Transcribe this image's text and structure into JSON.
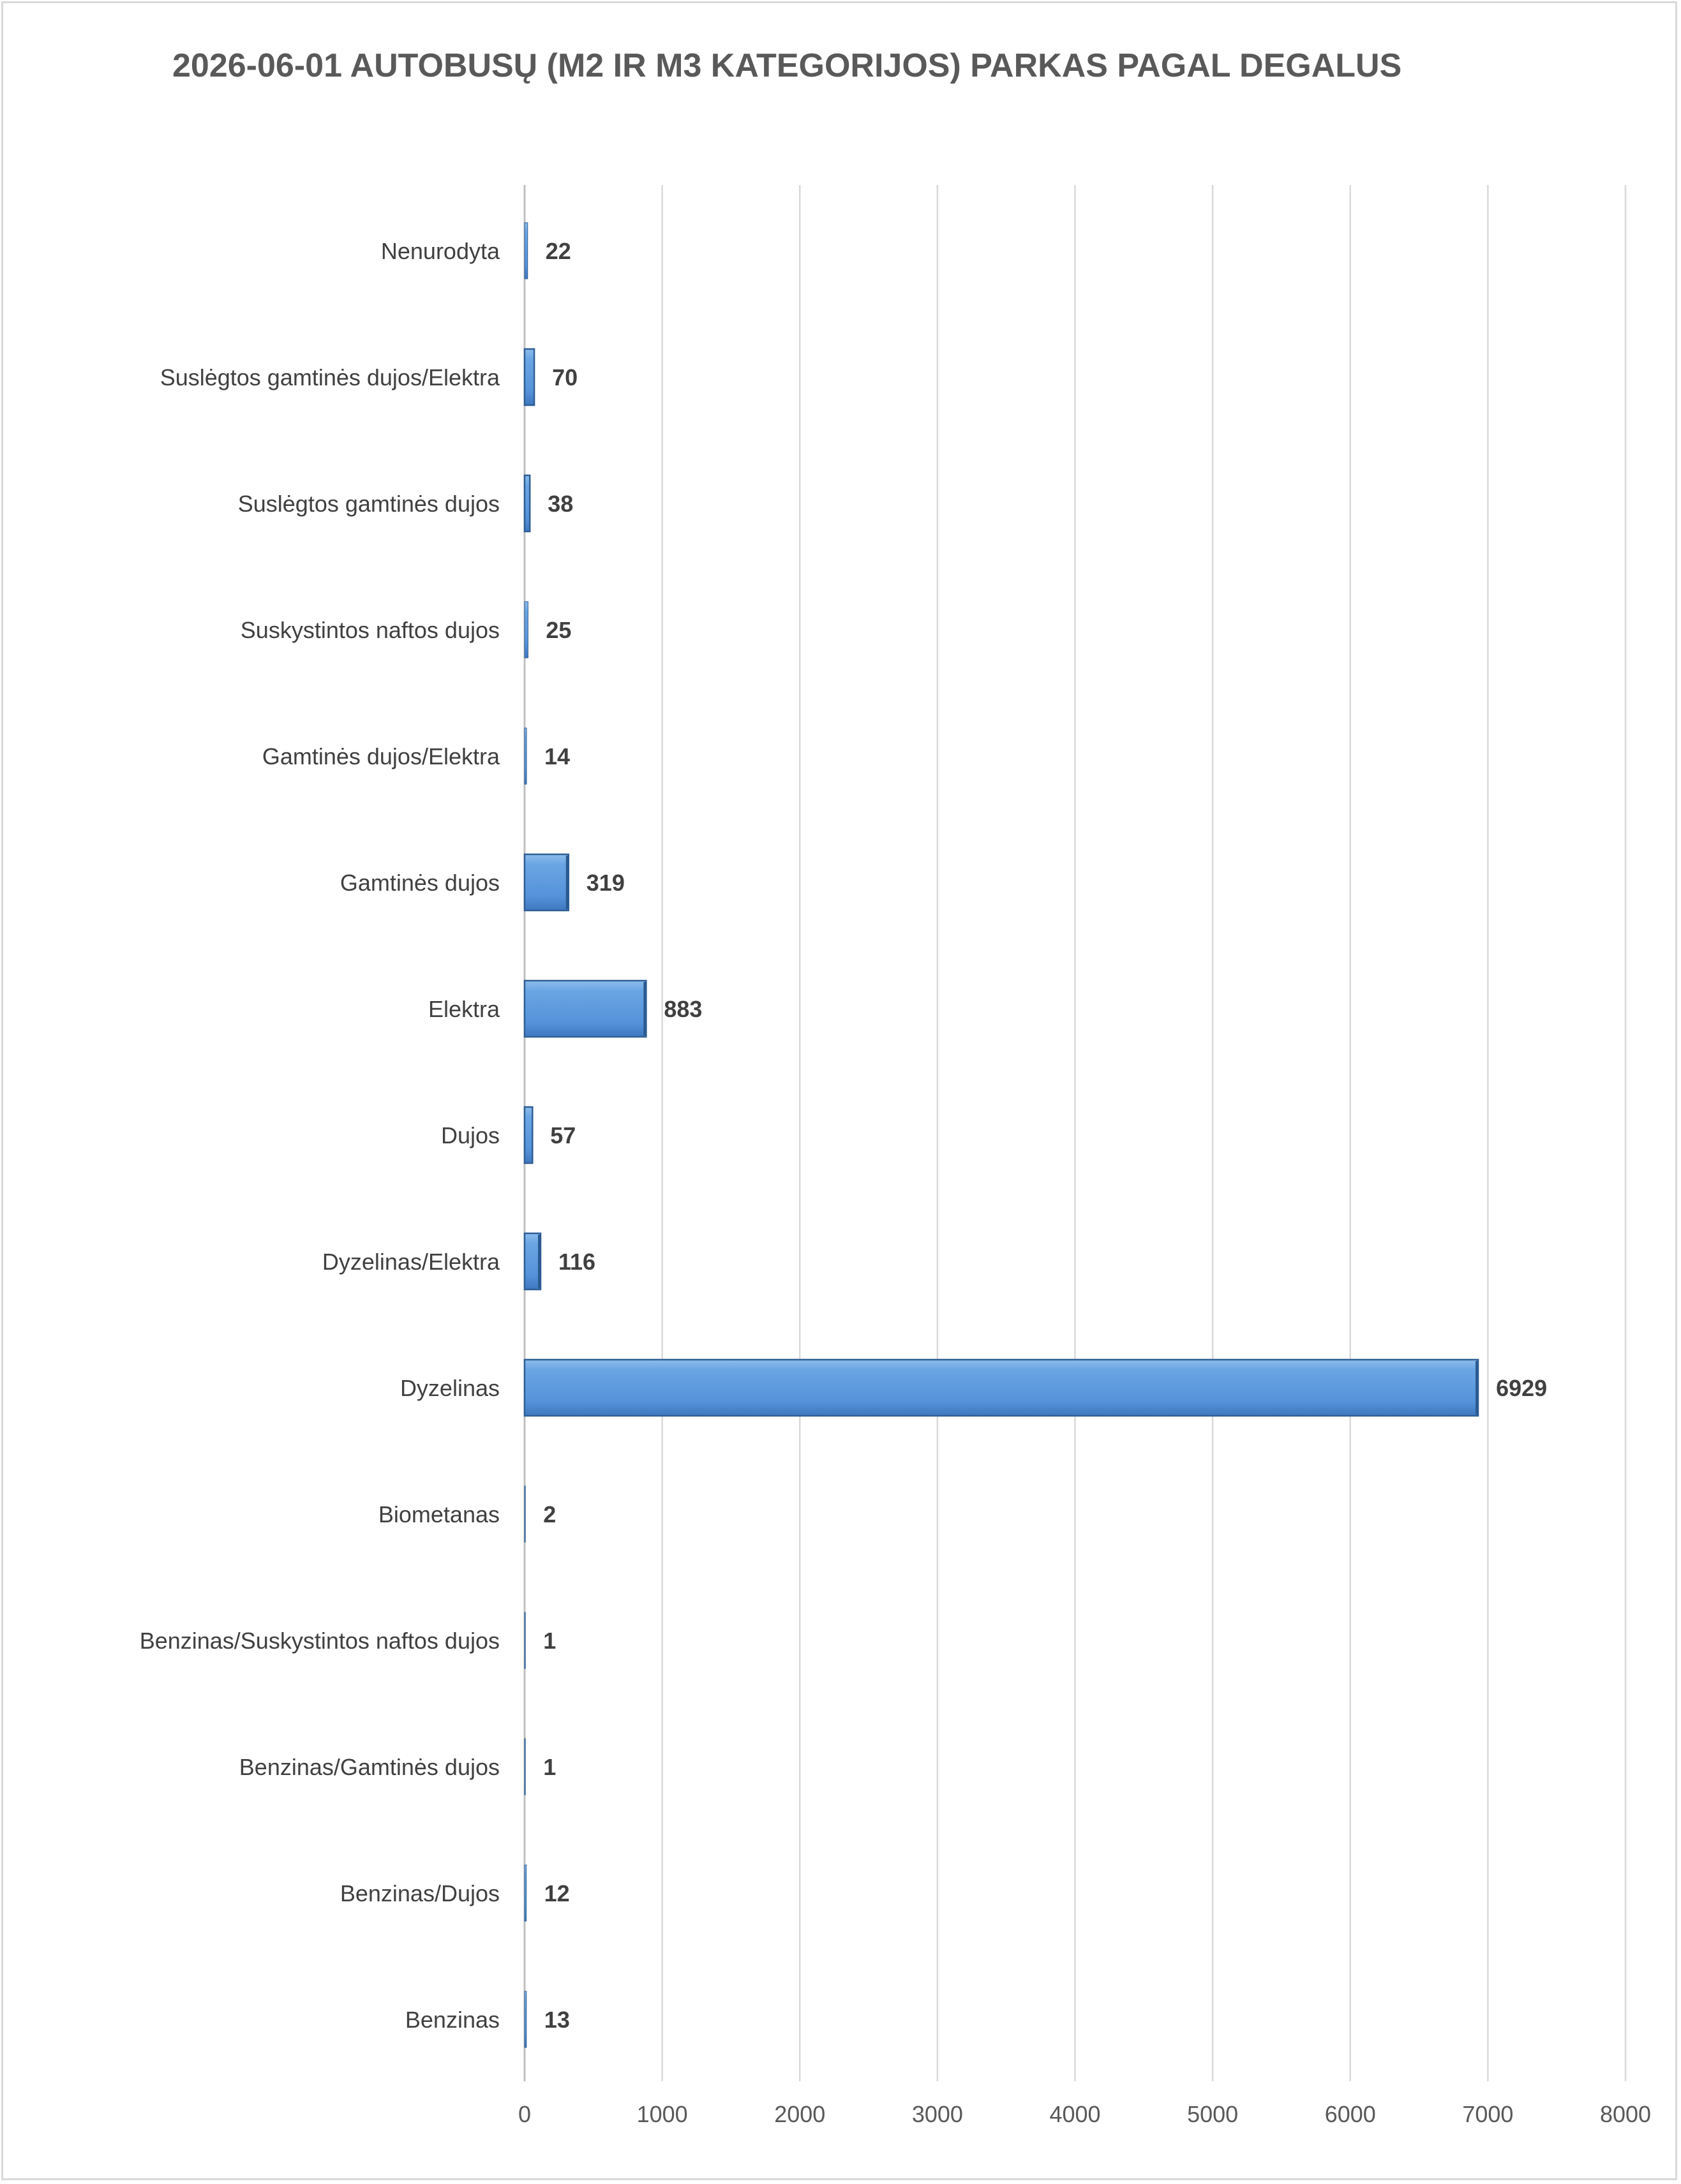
{
  "chart_data": {
    "type": "bar",
    "orientation": "horizontal",
    "title": "2026-06-01 AUTOBUSŲ (M2 IR M3 KATEGORIJOS) PARKAS PAGAL DEGALUS",
    "xlabel": "",
    "ylabel": "",
    "xlim": [
      0,
      8000
    ],
    "x_ticks": [
      0,
      1000,
      2000,
      3000,
      4000,
      5000,
      6000,
      7000,
      8000
    ],
    "grid": "vertical",
    "legend": "none",
    "bar_color": "#5b9bd5",
    "bar_edge_color": "#2f5f96",
    "categories": [
      "Nenurodyta",
      "Suslėgtos gamtinės dujos/Elektra",
      "Suslėgtos gamtinės dujos",
      "Suskystintos naftos dujos",
      "Gamtinės dujos/Elektra",
      "Gamtinės dujos",
      "Elektra",
      "Dujos",
      "Dyzelinas/Elektra",
      "Dyzelinas",
      "Biometanas",
      "Benzinas/Suskystintos naftos dujos",
      "Benzinas/Gamtinės dujos",
      "Benzinas/Dujos",
      "Benzinas"
    ],
    "values": [
      22,
      70,
      38,
      25,
      14,
      319,
      883,
      57,
      116,
      6929,
      2,
      1,
      1,
      12,
      13
    ],
    "data_labels": [
      "22",
      "70",
      "38",
      "25",
      "14",
      "319",
      "883",
      "57",
      "116",
      "6929",
      "2",
      "1",
      "1",
      "12",
      "13"
    ]
  }
}
